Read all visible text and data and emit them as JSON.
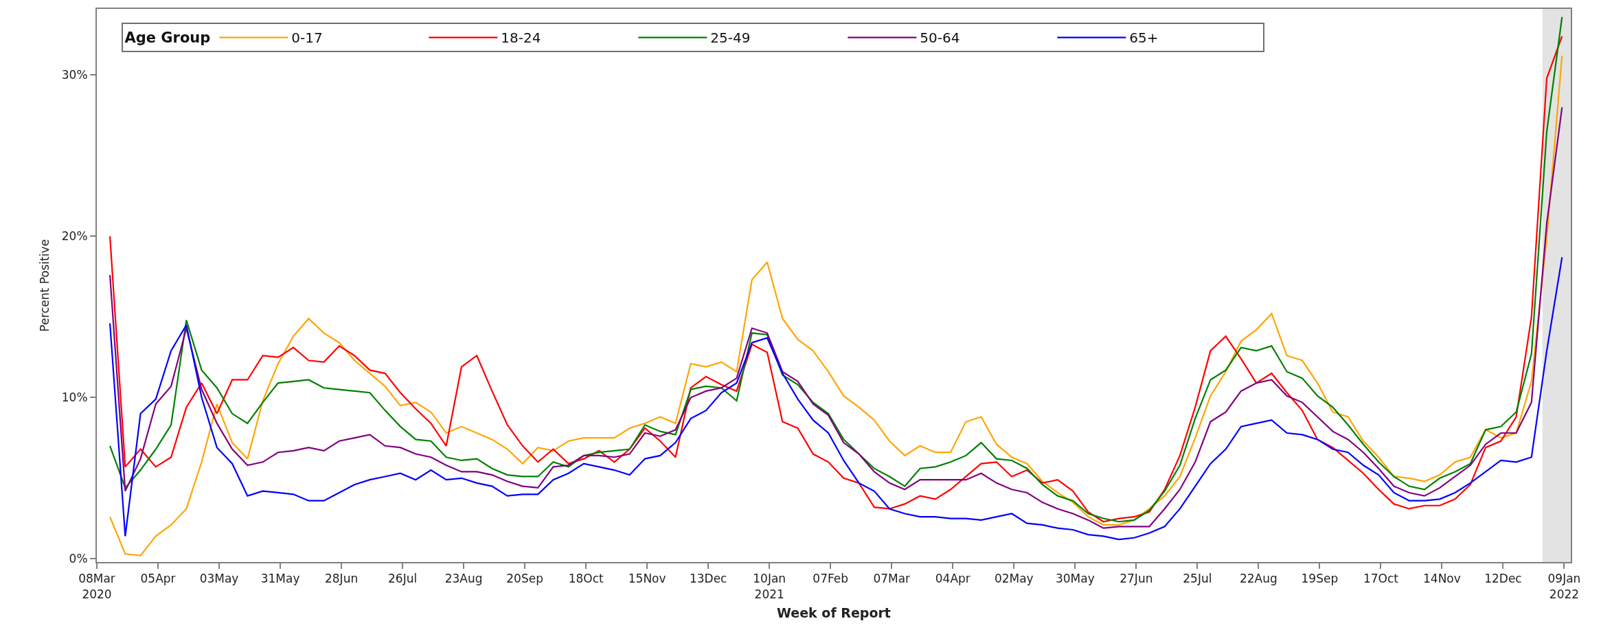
{
  "chart_data": {
    "type": "line",
    "xlabel": "Week of Report",
    "ylabel": "Percent Positive",
    "legend_title": "Age Group",
    "legend": "top left",
    "grid": false,
    "marker": "none",
    "line_style": "solid",
    "x": [
      "2020-03-14",
      "2020-03-21",
      "2020-03-28",
      "2020-04-04",
      "2020-04-11",
      "2020-04-18",
      "2020-04-25",
      "2020-05-02",
      "2020-05-09",
      "2020-05-16",
      "2020-05-23",
      "2020-05-30",
      "2020-06-06",
      "2020-06-13",
      "2020-06-20",
      "2020-06-27",
      "2020-07-04",
      "2020-07-11",
      "2020-07-18",
      "2020-07-25",
      "2020-08-01",
      "2020-08-08",
      "2020-08-15",
      "2020-08-22",
      "2020-08-29",
      "2020-09-05",
      "2020-09-12",
      "2020-09-19",
      "2020-09-26",
      "2020-10-03",
      "2020-10-10",
      "2020-10-17",
      "2020-10-24",
      "2020-10-31",
      "2020-11-07",
      "2020-11-14",
      "2020-11-21",
      "2020-11-28",
      "2020-12-05",
      "2020-12-12",
      "2020-12-19",
      "2020-12-26",
      "2021-01-02",
      "2021-01-09",
      "2021-01-16",
      "2021-01-23",
      "2021-01-30",
      "2021-02-06",
      "2021-02-13",
      "2021-02-20",
      "2021-02-27",
      "2021-03-06",
      "2021-03-13",
      "2021-03-20",
      "2021-03-27",
      "2021-04-03",
      "2021-04-10",
      "2021-04-17",
      "2021-04-24",
      "2021-05-01",
      "2021-05-08",
      "2021-05-15",
      "2021-05-22",
      "2021-05-29",
      "2021-06-05",
      "2021-06-12",
      "2021-06-19",
      "2021-06-26",
      "2021-07-03",
      "2021-07-10",
      "2021-07-17",
      "2021-07-24",
      "2021-07-31",
      "2021-08-07",
      "2021-08-14",
      "2021-08-21",
      "2021-08-28",
      "2021-09-04",
      "2021-09-11",
      "2021-09-18",
      "2021-09-25",
      "2021-10-02",
      "2021-10-09",
      "2021-10-16",
      "2021-10-23",
      "2021-10-30",
      "2021-11-06",
      "2021-11-13",
      "2021-11-20",
      "2021-11-27",
      "2021-12-04",
      "2021-12-11",
      "2021-12-18",
      "2021-12-25",
      "2022-01-01",
      "2022-01-08"
    ],
    "series": [
      {
        "name": "0-17",
        "color": "#ffa500",
        "values": [
          2.6,
          0.3,
          0.2,
          1.4,
          2.1,
          3.1,
          6.0,
          9.6,
          7.2,
          6.2,
          9.8,
          12.1,
          13.8,
          14.9,
          14.0,
          13.4,
          12.3,
          11.5,
          10.7,
          9.5,
          9.7,
          9.1,
          7.8,
          8.2,
          7.8,
          7.4,
          6.8,
          5.9,
          6.9,
          6.7,
          7.3,
          7.5,
          7.5,
          7.5,
          8.1,
          8.4,
          8.8,
          8.4,
          12.1,
          11.9,
          12.2,
          11.6,
          17.3,
          18.4,
          14.9,
          13.6,
          12.9,
          11.6,
          10.1,
          9.4,
          8.6,
          7.3,
          6.4,
          7.0,
          6.6,
          6.6,
          8.5,
          8.8,
          7.1,
          6.3,
          5.9,
          4.8,
          4.1,
          3.5,
          2.6,
          2.1,
          2.1,
          2.4,
          3.1,
          3.9,
          5.1,
          7.5,
          10.1,
          11.6,
          13.5,
          14.2,
          15.2,
          12.6,
          12.3,
          10.9,
          9.1,
          8.8,
          7.3,
          6.3,
          5.1,
          5.0,
          4.8,
          5.2,
          6.0,
          6.3,
          8.0,
          7.5,
          7.8,
          11.0,
          19.9,
          31.2
        ]
      },
      {
        "name": "18-24",
        "color": "#ff0000",
        "values": [
          20.0,
          5.7,
          6.8,
          5.7,
          6.3,
          9.4,
          10.9,
          9.0,
          11.1,
          11.1,
          12.6,
          12.5,
          13.1,
          12.3,
          12.2,
          13.2,
          12.6,
          11.7,
          11.5,
          10.3,
          9.3,
          8.4,
          7.0,
          11.9,
          12.6,
          10.4,
          8.3,
          7.0,
          6.0,
          6.8,
          5.9,
          6.2,
          6.7,
          6.0,
          6.8,
          8.1,
          7.3,
          6.3,
          10.6,
          11.3,
          10.8,
          10.4,
          13.3,
          12.8,
          8.5,
          8.1,
          6.5,
          6.0,
          5.0,
          4.7,
          3.2,
          3.1,
          3.4,
          3.9,
          3.7,
          4.3,
          5.1,
          5.9,
          6.0,
          5.1,
          5.5,
          4.7,
          4.9,
          4.2,
          2.9,
          2.3,
          2.5,
          2.6,
          2.9,
          4.3,
          6.4,
          9.4,
          12.9,
          13.8,
          12.4,
          10.9,
          11.5,
          10.3,
          9.2,
          7.4,
          6.9,
          6.1,
          5.3,
          4.3,
          3.4,
          3.1,
          3.3,
          3.3,
          3.7,
          4.6,
          6.9,
          7.3,
          8.8,
          15.0,
          29.8,
          32.4
        ]
      },
      {
        "name": "25-49",
        "color": "#008000",
        "values": [
          7.0,
          4.4,
          5.5,
          6.8,
          8.3,
          14.8,
          11.7,
          10.6,
          9.0,
          8.4,
          9.7,
          10.9,
          11.0,
          11.1,
          10.6,
          10.5,
          10.4,
          10.3,
          9.2,
          8.2,
          7.4,
          7.3,
          6.3,
          6.1,
          6.2,
          5.6,
          5.2,
          5.1,
          5.1,
          6.0,
          5.7,
          6.4,
          6.6,
          6.7,
          6.8,
          8.3,
          7.9,
          7.7,
          10.5,
          10.7,
          10.6,
          9.8,
          14.0,
          13.9,
          11.4,
          10.8,
          9.7,
          9.0,
          7.4,
          6.5,
          5.6,
          5.1,
          4.5,
          5.6,
          5.7,
          6.0,
          6.4,
          7.2,
          6.2,
          6.1,
          5.6,
          4.6,
          3.9,
          3.6,
          2.8,
          2.5,
          2.3,
          2.4,
          3.0,
          4.2,
          5.8,
          8.7,
          11.1,
          11.7,
          13.1,
          12.9,
          13.2,
          11.6,
          11.2,
          10.1,
          9.4,
          8.3,
          7.1,
          6.0,
          5.1,
          4.5,
          4.3,
          5.0,
          5.4,
          5.9,
          8.0,
          8.2,
          9.1,
          12.7,
          26.5,
          33.6
        ]
      },
      {
        "name": "50-64",
        "color": "#800080",
        "values": [
          17.6,
          4.2,
          6.2,
          9.6,
          10.7,
          14.3,
          10.5,
          8.4,
          6.8,
          5.8,
          6.0,
          6.6,
          6.7,
          6.9,
          6.7,
          7.3,
          7.5,
          7.7,
          7.0,
          6.9,
          6.5,
          6.3,
          5.8,
          5.4,
          5.4,
          5.2,
          4.8,
          4.5,
          4.4,
          5.7,
          5.8,
          6.4,
          6.4,
          6.3,
          6.5,
          7.8,
          7.6,
          8.0,
          10.0,
          10.4,
          10.6,
          11.2,
          14.3,
          14.0,
          11.6,
          11.0,
          9.6,
          8.9,
          7.2,
          6.5,
          5.4,
          4.7,
          4.3,
          4.9,
          4.9,
          4.9,
          4.9,
          5.3,
          4.7,
          4.3,
          4.1,
          3.5,
          3.1,
          2.8,
          2.4,
          1.9,
          2.0,
          2.0,
          2.0,
          3.1,
          4.3,
          6.0,
          8.5,
          9.1,
          10.4,
          10.9,
          11.1,
          10.1,
          9.7,
          8.8,
          7.9,
          7.4,
          6.6,
          5.6,
          4.5,
          4.1,
          3.9,
          4.4,
          5.1,
          5.8,
          7.1,
          7.8,
          7.8,
          9.7,
          20.8,
          28.0
        ]
      },
      {
        "name": "65+",
        "color": "#0000ff",
        "values": [
          14.6,
          1.4,
          9.0,
          9.9,
          12.9,
          14.5,
          10.0,
          6.9,
          5.9,
          3.9,
          4.2,
          4.1,
          4.0,
          3.6,
          3.6,
          4.1,
          4.6,
          4.9,
          5.1,
          5.3,
          4.9,
          5.5,
          4.9,
          5.0,
          4.7,
          4.5,
          3.9,
          4.0,
          4.0,
          4.9,
          5.3,
          5.9,
          5.7,
          5.5,
          5.2,
          6.2,
          6.4,
          7.2,
          8.7,
          9.2,
          10.3,
          10.9,
          13.4,
          13.7,
          11.5,
          9.9,
          8.6,
          7.8,
          6.1,
          4.7,
          4.2,
          3.1,
          2.8,
          2.6,
          2.6,
          2.5,
          2.5,
          2.4,
          2.6,
          2.8,
          2.2,
          2.1,
          1.9,
          1.8,
          1.5,
          1.4,
          1.2,
          1.3,
          1.6,
          2.0,
          3.1,
          4.5,
          5.9,
          6.8,
          8.2,
          8.4,
          8.6,
          7.8,
          7.7,
          7.4,
          6.8,
          6.6,
          5.8,
          5.2,
          4.1,
          3.6,
          3.6,
          3.7,
          4.1,
          4.7,
          5.4,
          6.1,
          6.0,
          6.3,
          12.9,
          18.7
        ]
      }
    ],
    "xlim": [
      "2020-03-08",
      "2022-01-12"
    ],
    "ylim": [
      -0.2,
      34.1
    ],
    "xticks": [
      {
        "value": "2020-03-08",
        "label": "08Mar\n2020"
      },
      {
        "value": "2020-04-05",
        "label": "05Apr"
      },
      {
        "value": "2020-05-03",
        "label": "03May"
      },
      {
        "value": "2020-05-31",
        "label": "31May"
      },
      {
        "value": "2020-06-28",
        "label": "28Jun"
      },
      {
        "value": "2020-07-26",
        "label": "26Jul"
      },
      {
        "value": "2020-08-23",
        "label": "23Aug"
      },
      {
        "value": "2020-09-20",
        "label": "20Sep"
      },
      {
        "value": "2020-10-18",
        "label": "18Oct"
      },
      {
        "value": "2020-11-15",
        "label": "15Nov"
      },
      {
        "value": "2020-12-13",
        "label": "13Dec"
      },
      {
        "value": "2021-01-10",
        "label": "10Jan\n2021"
      },
      {
        "value": "2021-02-07",
        "label": "07Feb"
      },
      {
        "value": "2021-03-07",
        "label": "07Mar"
      },
      {
        "value": "2021-04-04",
        "label": "04Apr"
      },
      {
        "value": "2021-05-02",
        "label": "02May"
      },
      {
        "value": "2021-05-30",
        "label": "30May"
      },
      {
        "value": "2021-06-27",
        "label": "27Jun"
      },
      {
        "value": "2021-07-25",
        "label": "25Jul"
      },
      {
        "value": "2021-08-22",
        "label": "22Aug"
      },
      {
        "value": "2021-09-19",
        "label": "19Sep"
      },
      {
        "value": "2021-10-17",
        "label": "17Oct"
      },
      {
        "value": "2021-11-14",
        "label": "14Nov"
      },
      {
        "value": "2021-12-12",
        "label": "12Dec"
      },
      {
        "value": "2022-01-09",
        "label": "09Jan\n2022"
      }
    ],
    "yticks": [
      {
        "value": 0,
        "label": "0%"
      },
      {
        "value": 10,
        "label": "10%"
      },
      {
        "value": 20,
        "label": "20%"
      },
      {
        "value": 30,
        "label": "30%"
      }
    ],
    "bands": [
      {
        "axis": "x",
        "from": "2021-12-30",
        "to": "2022-01-12",
        "color": "#e3e3e3"
      }
    ]
  }
}
